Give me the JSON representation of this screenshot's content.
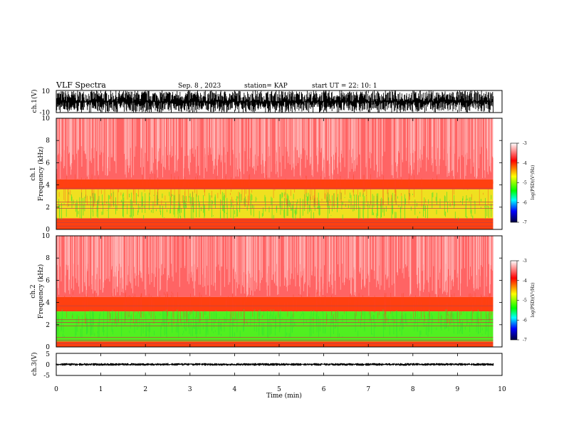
{
  "header": {
    "title": "VLF Spectra",
    "date": "Sep. 8 , 2023",
    "station": "station= KAP",
    "start_ut": "start UT = 22: 10: 1"
  },
  "colors": {
    "trace": "#000000",
    "spectrogram_background": "#ff2020",
    "colorbar_stops": [
      "#ffffff",
      "#ff0000",
      "#ffff00",
      "#00ff00",
      "#00ffff",
      "#0000ff",
      "#000080"
    ]
  },
  "chart_data": [
    {
      "type": "line",
      "title": "",
      "ylabel": "ch.1(V)",
      "xlim": [
        0,
        10
      ],
      "ylim": [
        -10,
        10
      ],
      "ytick_labels": [
        "10",
        "-10"
      ],
      "series": [
        {
          "values_range": [
            -10,
            10
          ],
          "x_end": 9.8
        }
      ]
    },
    {
      "type": "heatmap",
      "ylabel": "ch.1\nFrequency (kHz)",
      "ylabel_lines": [
        "ch.1",
        "Frequency (kHz)"
      ],
      "xlim": [
        0,
        10
      ],
      "ylim": [
        0,
        10
      ],
      "ytick_labels": [
        "0",
        "2",
        "4",
        "6",
        "8",
        "10"
      ],
      "data_x_end": 9.8,
      "bands": [
        {
          "from": 4.5,
          "to": 10,
          "level": -3.4
        },
        {
          "from": 3.6,
          "to": 4.5,
          "level": -4.0
        },
        {
          "from": 1.0,
          "to": 3.6,
          "level": -4.6
        },
        {
          "from": 0.0,
          "to": 1.0,
          "level": -4.1
        }
      ],
      "colorbar": {
        "label": "log(PSD)(V²/Hz)",
        "ticks": [
          "-3",
          "-4",
          "-5",
          "-6",
          "-7"
        ],
        "range": [
          -7,
          -3
        ]
      }
    },
    {
      "type": "heatmap",
      "ylabel": "ch.2\nFrequency (kHz)",
      "ylabel_lines": [
        "ch.2",
        "Frequency (kHz)"
      ],
      "xlim": [
        0,
        10
      ],
      "ylim": [
        0,
        10
      ],
      "ytick_labels": [
        "0",
        "2",
        "4",
        "6",
        "8",
        "10"
      ],
      "data_x_end": 9.8,
      "bands": [
        {
          "from": 4.5,
          "to": 10,
          "level": -3.4
        },
        {
          "from": 3.2,
          "to": 4.5,
          "level": -4.1
        },
        {
          "from": 0.5,
          "to": 3.2,
          "level": -5.0
        },
        {
          "from": 0.0,
          "to": 0.5,
          "level": -4.2
        }
      ],
      "colorbar": {
        "label": "log(PSD)(V²/Hz)",
        "ticks": [
          "-3",
          "-4",
          "-5",
          "-6",
          "-7"
        ],
        "range": [
          -7,
          -3
        ]
      }
    },
    {
      "type": "line",
      "ylabel": "ch.3(V)",
      "xlabel": "Time (min)",
      "xlim": [
        0,
        10
      ],
      "ylim": [
        -5,
        5
      ],
      "ytick_labels": [
        "5",
        "0",
        "-5"
      ],
      "xtick_labels": [
        "0",
        "1",
        "2",
        "3",
        "4",
        "5",
        "6",
        "7",
        "8",
        "9",
        "10"
      ],
      "series": [
        {
          "values_range": [
            -0.6,
            0.6
          ],
          "x_end": 9.8
        }
      ]
    }
  ]
}
